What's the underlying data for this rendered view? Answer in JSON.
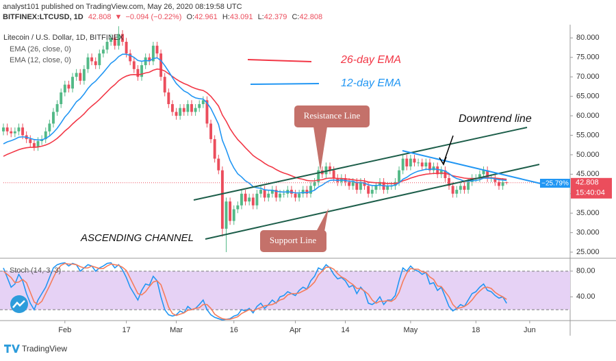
{
  "header": {
    "author_line": "analyst101 published on TradingView.com, May 26, 2020 08:19:58 UTC",
    "symbol": "BITFINEX:LTCUSD, 1D",
    "arrow": "▼",
    "change": "−0.094 (−0.22%)",
    "ohlc_labels": [
      "O:",
      "H:",
      "L:",
      "C:"
    ],
    "legend_title": "Litecoin / U.S. Dollar, 1D, BITFINEX"
  },
  "annotations": {
    "ema26": "26-day EMA",
    "ema12": "12-day EMA",
    "downtrend": "Downtrend line",
    "resistance": "Resistance Line",
    "support": "Support Line",
    "channel": "ASCENDING CHANNEL",
    "pct": "−25.79%",
    "countdown": "15:40:04"
  },
  "footer": "TradingView",
  "chart_data": [
    {
      "type": "candlestick",
      "up_color": "#53b987",
      "down_color": "#eb4d5c",
      "xlim": [
        0,
        147
      ],
      "xticks": [
        {
          "value": 16,
          "label": "Feb"
        },
        {
          "value": 32,
          "label": "17"
        },
        {
          "value": 45,
          "label": "Mar"
        },
        {
          "value": 60,
          "label": "16"
        },
        {
          "value": 76,
          "label": "Apr"
        },
        {
          "value": 89,
          "label": "14"
        },
        {
          "value": 106,
          "label": "May"
        },
        {
          "value": 123,
          "label": "18"
        },
        {
          "value": 137,
          "label": "Jun"
        }
      ],
      "ylim": [
        23.6,
        83.4
      ],
      "yticks": [
        {
          "value": 25,
          "label": "25.000"
        },
        {
          "value": 30,
          "label": "30.000"
        },
        {
          "value": 35,
          "label": "35.000"
        },
        {
          "value": 40,
          "label": "40.000"
        },
        {
          "value": 45,
          "label": "45.000"
        },
        {
          "value": 50,
          "label": "50.000"
        },
        {
          "value": 55,
          "label": "55.000"
        },
        {
          "value": 60,
          "label": "60.000"
        },
        {
          "value": 65,
          "label": "65.000"
        },
        {
          "value": 70,
          "label": "70.000"
        },
        {
          "value": 75,
          "label": "75.000"
        },
        {
          "value": 80,
          "label": "80.000"
        }
      ],
      "open": [
        56,
        57,
        56,
        55.5,
        56,
        57,
        55,
        54,
        53,
        52,
        53.5,
        54,
        56,
        58,
        61,
        63,
        66,
        68,
        67,
        70,
        71,
        69,
        72,
        75,
        74,
        73,
        76,
        77,
        79,
        80,
        78,
        81,
        79,
        76,
        74,
        72,
        70,
        73,
        75,
        74,
        78,
        76,
        70,
        66,
        63,
        61,
        60,
        62,
        61,
        63,
        61,
        62,
        63,
        64,
        58,
        54,
        49,
        46,
        31,
        38,
        33,
        36,
        37,
        40,
        38,
        39,
        37,
        40,
        41,
        39,
        40,
        41,
        39,
        40,
        40,
        41,
        40,
        39,
        40,
        41,
        40,
        42,
        43,
        46,
        45,
        47,
        46,
        44,
        43,
        44,
        43,
        42,
        43,
        41,
        43,
        42,
        40,
        41,
        42,
        43,
        41,
        42,
        42,
        43,
        46,
        49,
        47,
        49,
        48,
        48,
        47,
        48,
        46,
        47,
        45,
        46,
        44,
        42,
        40,
        41,
        42,
        41,
        43,
        44,
        44,
        45,
        46,
        44,
        44,
        43,
        42,
        42.961
      ],
      "high": [
        58,
        58,
        57,
        57,
        58,
        58,
        56,
        55,
        54,
        54.5,
        55,
        57,
        59,
        62,
        64,
        67,
        69,
        69,
        71,
        72,
        72,
        73,
        76,
        76,
        75,
        77,
        78,
        80,
        81,
        81,
        83,
        82,
        80,
        77,
        75,
        73,
        74,
        76,
        76,
        79,
        79,
        77,
        71,
        67,
        64,
        62,
        63,
        63,
        64,
        64,
        63,
        64,
        65,
        65,
        59,
        55,
        50,
        47,
        39,
        39,
        37,
        38,
        41,
        41,
        40,
        40,
        41,
        42,
        42,
        41,
        42,
        42,
        41,
        41,
        42,
        42,
        41,
        41,
        42,
        42,
        43,
        44,
        47,
        47,
        48,
        48,
        47,
        45,
        45,
        45,
        44,
        44,
        44,
        44,
        44,
        43,
        42,
        43,
        44,
        44,
        43,
        43,
        44,
        47,
        50,
        50,
        50,
        50,
        49,
        49,
        49,
        49,
        48,
        48,
        47,
        47,
        45,
        43,
        42,
        43,
        43,
        44,
        45,
        45,
        46,
        47,
        47,
        45,
        45,
        44,
        44,
        43.091
      ],
      "low": [
        55,
        55,
        54.5,
        54.5,
        55,
        54,
        53,
        52,
        51,
        51,
        52.5,
        53,
        55,
        57,
        60,
        62,
        65,
        66,
        66,
        69,
        68,
        68,
        71,
        73,
        72,
        72,
        75,
        76,
        78,
        77,
        77,
        78,
        75,
        73,
        71,
        69,
        69,
        72,
        73,
        73,
        75,
        69,
        65,
        62,
        60,
        59,
        59,
        60,
        60,
        60,
        60,
        61,
        62,
        57,
        53,
        48,
        45,
        29,
        25,
        32,
        32,
        35,
        36,
        37,
        37,
        36,
        36,
        39,
        38,
        38,
        39,
        38,
        38,
        39,
        39,
        39,
        38,
        38,
        39,
        39,
        39,
        41,
        42,
        44,
        44,
        45,
        43,
        42,
        42,
        42,
        41,
        41,
        40,
        40,
        41,
        39,
        39,
        40,
        41,
        40,
        40,
        41,
        41,
        42,
        45,
        46,
        46,
        47,
        47,
        46,
        46,
        45,
        45,
        44,
        44,
        43,
        41,
        39,
        39,
        40,
        40,
        40,
        42,
        43,
        43,
        44,
        43,
        43,
        42,
        41,
        41,
        42.379
      ],
      "close": [
        57,
        56,
        55.5,
        56,
        57,
        55,
        54,
        53,
        52,
        53.5,
        54,
        56,
        58,
        61,
        63,
        66,
        68,
        67,
        70,
        71,
        69,
        72,
        75,
        74,
        73,
        76,
        77,
        79,
        80,
        78,
        81,
        79,
        76,
        74,
        72,
        70,
        73,
        75,
        74,
        78,
        76,
        70,
        66,
        63,
        61,
        60,
        62,
        61,
        63,
        61,
        62,
        63,
        64,
        58,
        54,
        49,
        46,
        31,
        38,
        33,
        36,
        37,
        40,
        38,
        39,
        37,
        40,
        41,
        39,
        40,
        41,
        39,
        40,
        40,
        41,
        40,
        39,
        40,
        41,
        40,
        42,
        43,
        46,
        45,
        47,
        46,
        44,
        43,
        44,
        43,
        42,
        43,
        41,
        43,
        42,
        40,
        41,
        42,
        43,
        41,
        42,
        42,
        43,
        46,
        49,
        47,
        49,
        48,
        48,
        47,
        48,
        46,
        47,
        45,
        46,
        44,
        42,
        40,
        41,
        42,
        41,
        43,
        44,
        44,
        45,
        46,
        44,
        44,
        43,
        42,
        43,
        42.808
      ],
      "series": [
        {
          "name": "EMA (26, close, 0)",
          "color": "#f23645",
          "values": [
            49.6,
            50.1,
            50.5,
            50.9,
            51.3,
            51.6,
            51.8,
            51.9,
            51.9,
            52,
            52.2,
            52.5,
            52.9,
            53.5,
            54.2,
            55.1,
            56.1,
            56.9,
            57.9,
            58.8,
            59.6,
            60.5,
            61.6,
            62.5,
            63.3,
            64.2,
            65.2,
            66.2,
            67.2,
            68,
            69,
            69.7,
            70.2,
            70.5,
            70.6,
            70.5,
            70.7,
            71,
            71.2,
            71.7,
            72,
            71.9,
            71.5,
            70.8,
            70.1,
            69.4,
            68.8,
            68.3,
            67.9,
            67.4,
            67,
            66.7,
            66.5,
            65.9,
            65,
            63.8,
            62.5,
            60.2,
            58.6,
            56.7,
            55.2,
            53.9,
            52.9,
            51.8,
            50.8,
            49.8,
            49.1,
            48.5,
            47.8,
            47.2,
            46.8,
            46.2,
            45.7,
            45.3,
            45,
            44.6,
            44.2,
            43.9,
            43.7,
            43.4,
            43.3,
            43.3,
            43.5,
            43.6,
            43.9,
            44,
            44,
            43.9,
            43.9,
            43.8,
            43.7,
            43.6,
            43.4,
            43.4,
            43.3,
            43,
            42.9,
            42.8,
            42.8,
            42.7,
            42.6,
            42.6,
            42.6,
            42.9,
            43.3,
            43.6,
            44,
            44.3,
            44.6,
            44.8,
            45,
            45.1,
            45.2,
            45.2,
            45.3,
            45.2,
            45,
            44.6,
            44.4,
            44.2,
            44,
            43.9,
            43.9,
            43.9,
            44,
            44.1,
            44.1,
            44.1,
            44,
            43.9,
            43.8,
            43.7
          ]
        },
        {
          "name": "EMA (12, close, 0)",
          "color": "#2196f3",
          "values": [
            52.8,
            53.3,
            53.6,
            54,
            54.5,
            54.6,
            54.5,
            54.2,
            53.9,
            53.8,
            53.8,
            54.2,
            54.8,
            55.7,
            56.8,
            58.2,
            59.7,
            60.8,
            62.2,
            63.6,
            64.4,
            65.6,
            67,
            68.1,
            68.9,
            70,
            71.1,
            72.3,
            73.5,
            74.2,
            75.2,
            75.8,
            75.8,
            75.5,
            75,
            74.2,
            74,
            74.2,
            74.1,
            74.7,
            74.9,
            74.2,
            72.9,
            71.4,
            69.8,
            68.3,
            67.3,
            66.4,
            65.9,
            65.1,
            64.6,
            64.4,
            64.3,
            63.3,
            61.9,
            59.9,
            57.8,
            53.7,
            51.3,
            48.5,
            46.6,
            45.1,
            44.3,
            43.3,
            42.7,
            41.8,
            41.5,
            41.4,
            41,
            40.9,
            40.9,
            40.6,
            40.5,
            40.4,
            40.5,
            40.4,
            40.2,
            40.2,
            40.3,
            40.3,
            40.5,
            40.9,
            41.7,
            42.2,
            42.9,
            43.4,
            43.5,
            43.4,
            43.5,
            43.4,
            43.2,
            43.2,
            42.8,
            42.9,
            42.7,
            42.3,
            42.1,
            42.1,
            42.2,
            42,
            42,
            42,
            42.2,
            42.8,
            43.7,
            44.2,
            44.9,
            45.4,
            45.8,
            46,
            46.3,
            46.2,
            46.4,
            46.2,
            46.1,
            45.8,
            45.2,
            44.4,
            43.9,
            43.6,
            43.2,
            43.2,
            43.3,
            43.4,
            43.6,
            44,
            44,
            44,
            43.8,
            43.6,
            43.5,
            43.4
          ]
        }
      ]
    },
    {
      "type": "line",
      "title": "Stoch (14, 3, 3)",
      "band_color": "#e6d2f5",
      "ylim": [
        3,
        99
      ],
      "yticks": [
        {
          "value": 80,
          "label": "80.00"
        },
        {
          "value": 40,
          "label": "40.00"
        }
      ],
      "bands": [
        20,
        80
      ],
      "series": [
        {
          "color": "#2196f3",
          "values": [
            85,
            70,
            55,
            60,
            75,
            65,
            45,
            30,
            20,
            35,
            45,
            55,
            70,
            85,
            90,
            92,
            93,
            88,
            92,
            90,
            80,
            85,
            90,
            88,
            80,
            85,
            88,
            92,
            93,
            85,
            90,
            82,
            70,
            55,
            45,
            35,
            50,
            60,
            58,
            72,
            65,
            40,
            20,
            12,
            10,
            12,
            18,
            15,
            25,
            20,
            22,
            28,
            35,
            20,
            12,
            8,
            6,
            4,
            5,
            6,
            10,
            12,
            20,
            18,
            22,
            15,
            25,
            30,
            22,
            28,
            35,
            30,
            40,
            42,
            48,
            45,
            42,
            50,
            55,
            52,
            65,
            72,
            85,
            82,
            90,
            85,
            75,
            68,
            70,
            65,
            55,
            58,
            45,
            55,
            48,
            30,
            28,
            32,
            40,
            28,
            35,
            35,
            42,
            65,
            85,
            80,
            88,
            82,
            80,
            75,
            78,
            60,
            62,
            50,
            55,
            40,
            25,
            18,
            22,
            28,
            25,
            35,
            45,
            48,
            55,
            60,
            50,
            48,
            42,
            38,
            40,
            30
          ]
        },
        {
          "color": "#f57c5b",
          "values": [
            80,
            75,
            70,
            62,
            63,
            67,
            62,
            47,
            32,
            28,
            33,
            45,
            57,
            70,
            82,
            89,
            92,
            91,
            91,
            90,
            87,
            85,
            85,
            88,
            86,
            84,
            84,
            88,
            91,
            90,
            89,
            86,
            81,
            69,
            57,
            45,
            43,
            48,
            56,
            63,
            65,
            59,
            42,
            24,
            14,
            11,
            13,
            15,
            19,
            20,
            22,
            23,
            28,
            28,
            22,
            13,
            9,
            6,
            5,
            5,
            7,
            9,
            14,
            17,
            20,
            18,
            21,
            23,
            26,
            27,
            28,
            31,
            35,
            37,
            43,
            45,
            45,
            46,
            49,
            52,
            57,
            63,
            74,
            80,
            86,
            86,
            83,
            76,
            71,
            68,
            63,
            59,
            53,
            53,
            49,
            44,
            35,
            30,
            33,
            33,
            34,
            33,
            37,
            47,
            64,
            77,
            84,
            83,
            83,
            79,
            78,
            71,
            67,
            57,
            56,
            48,
            40,
            28,
            22,
            23,
            25,
            29,
            35,
            43,
            49,
            54,
            55,
            53,
            47,
            43,
            40,
            36
          ]
        }
      ]
    }
  ]
}
